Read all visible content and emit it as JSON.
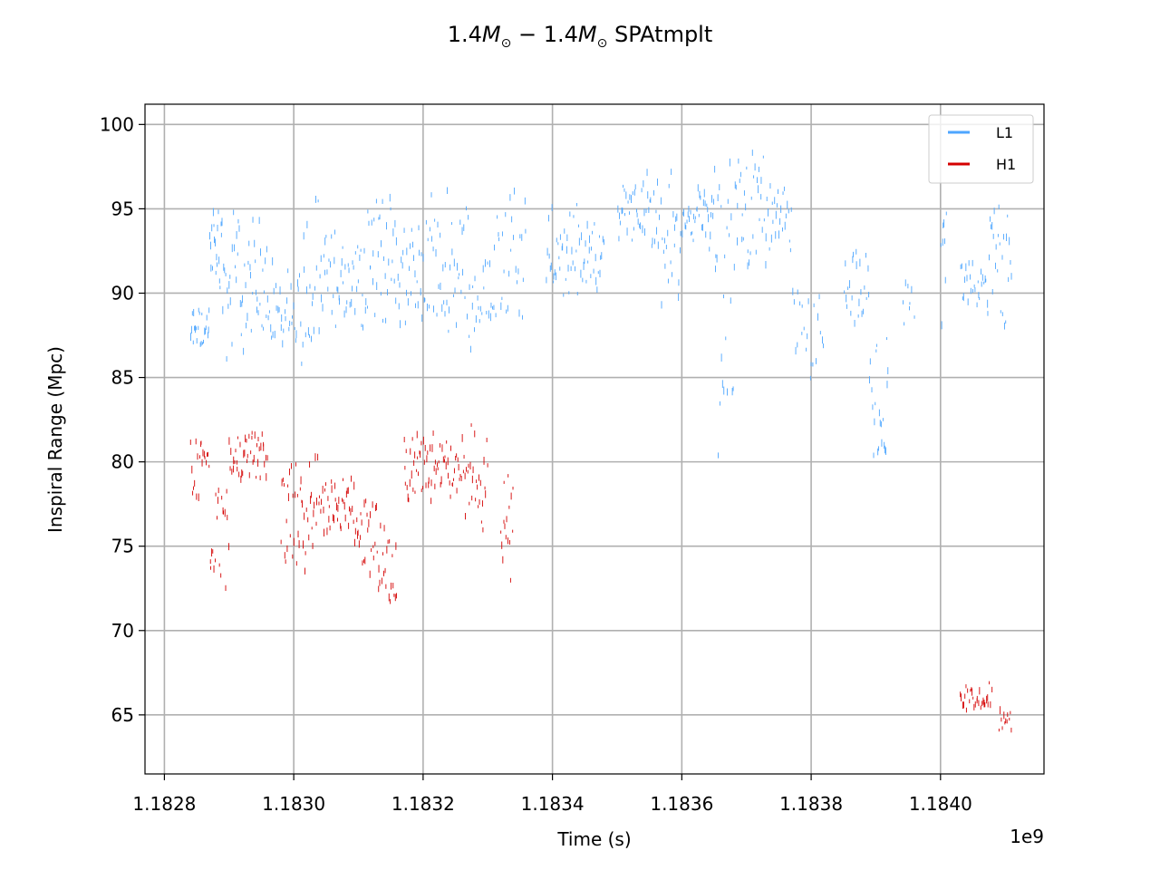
{
  "chart_data": {
    "type": "scatter",
    "title_parts": {
      "m1": "1.4",
      "m2": "1.4",
      "suffix": "SPAtmplt"
    },
    "xlabel": "Time (s)",
    "ylabel": "Inspiral Range (Mpc)",
    "x_offset_label": "1e9",
    "xlim": [
      1182770000.0,
      1184160000.0
    ],
    "ylim": [
      61.5,
      101.2
    ],
    "xticks": [
      1182800000.0,
      1183000000.0,
      1183200000.0,
      1183400000.0,
      1183600000.0,
      1183800000.0,
      1184000000.0
    ],
    "xtick_labels": [
      "1.1828",
      "1.1830",
      "1.1832",
      "1.1834",
      "1.1836",
      "1.1838",
      "1.1840"
    ],
    "yticks": [
      65,
      70,
      75,
      80,
      85,
      90,
      95,
      100
    ],
    "ytick_labels": [
      "65",
      "70",
      "75",
      "80",
      "85",
      "90",
      "95",
      "100"
    ],
    "grid": true,
    "legend_position": "top-right",
    "series": [
      {
        "name": "L1",
        "color": "#4da6ff",
        "segments": [
          {
            "x0": 1182840000.0,
            "x1": 1182870000.0,
            "y_lo": 86,
            "y_hi": 89.5,
            "n": 24
          },
          {
            "x0": 1182870000.0,
            "x1": 1182890000.0,
            "y_lo": 89.5,
            "y_hi": 96,
            "n": 20
          },
          {
            "x0": 1182890000.0,
            "x1": 1182930000.0,
            "y_lo": 85.5,
            "y_hi": 95.5,
            "n": 30
          },
          {
            "x0": 1182930000.0,
            "x1": 1182970000.0,
            "y_lo": 86,
            "y_hi": 95,
            "n": 30
          },
          {
            "x0": 1182970000.0,
            "x1": 1183010000.0,
            "y_lo": 86.5,
            "y_hi": 92,
            "n": 26
          },
          {
            "x0": 1183010000.0,
            "x1": 1183060000.0,
            "y_lo": 84.5,
            "y_hi": 96,
            "n": 34
          },
          {
            "x0": 1183060000.0,
            "x1": 1183110000.0,
            "y_lo": 87.5,
            "y_hi": 94,
            "n": 34
          },
          {
            "x0": 1183110000.0,
            "x1": 1183160000.0,
            "y_lo": 87,
            "y_hi": 97.2,
            "n": 36
          },
          {
            "x0": 1183160000.0,
            "x1": 1183210000.0,
            "y_lo": 87.5,
            "y_hi": 95,
            "n": 34
          },
          {
            "x0": 1183210000.0,
            "x1": 1183270000.0,
            "y_lo": 87,
            "y_hi": 96.5,
            "n": 40
          },
          {
            "x0": 1183270000.0,
            "x1": 1183310000.0,
            "y_lo": 86.5,
            "y_hi": 93,
            "n": 24
          },
          {
            "x0": 1183310000.0,
            "x1": 1183360000.0,
            "y_lo": 86.5,
            "y_hi": 97.5,
            "n": 28
          },
          {
            "x0": 1183390000.0,
            "x1": 1183440000.0,
            "y_lo": 89,
            "y_hi": 96,
            "n": 34
          },
          {
            "x0": 1183440000.0,
            "x1": 1183480000.0,
            "y_lo": 90,
            "y_hi": 94.5,
            "n": 28
          },
          {
            "x0": 1183500000.0,
            "x1": 1183550000.0,
            "y_lo": 92.5,
            "y_hi": 97.5,
            "n": 34
          },
          {
            "x0": 1183550000.0,
            "x1": 1183610000.0,
            "y_lo": 89,
            "y_hi": 97.5,
            "n": 40
          },
          {
            "x0": 1183610000.0,
            "x1": 1183650000.0,
            "y_lo": 92.5,
            "y_hi": 97,
            "n": 30
          },
          {
            "x0": 1183650000.0,
            "x1": 1183680000.0,
            "y_lo": 79,
            "y_hi": 99,
            "n": 24
          },
          {
            "x0": 1183680000.0,
            "x1": 1183730000.0,
            "y_lo": 90.5,
            "y_hi": 99.5,
            "n": 34
          },
          {
            "x0": 1183730000.0,
            "x1": 1183770000.0,
            "y_lo": 91,
            "y_hi": 97,
            "n": 26
          },
          {
            "x0": 1183770000.0,
            "x1": 1183820000.0,
            "y_lo": 84,
            "y_hi": 91,
            "n": 22
          },
          {
            "x0": 1183850000.0,
            "x1": 1183890000.0,
            "y_lo": 87,
            "y_hi": 93,
            "n": 24
          },
          {
            "x0": 1183890000.0,
            "x1": 1183920000.0,
            "y_lo": 78.5,
            "y_hi": 88,
            "n": 22
          },
          {
            "x0": 1183940000.0,
            "x1": 1183960000.0,
            "y_lo": 87,
            "y_hi": 91,
            "n": 8
          },
          {
            "x0": 1184000000.0,
            "x1": 1184010000.0,
            "y_lo": 86.5,
            "y_hi": 95.5,
            "n": 8
          },
          {
            "x0": 1184030000.0,
            "x1": 1184070000.0,
            "y_lo": 88.5,
            "y_hi": 93,
            "n": 24
          },
          {
            "x0": 1184070000.0,
            "x1": 1184110000.0,
            "y_lo": 85.5,
            "y_hi": 96.5,
            "n": 28
          }
        ]
      },
      {
        "name": "H1",
        "color": "#d40000",
        "segments": [
          {
            "x0": 1182840000.0,
            "x1": 1182870000.0,
            "y_lo": 77.5,
            "y_hi": 82,
            "n": 20
          },
          {
            "x0": 1182870000.0,
            "x1": 1182900000.0,
            "y_lo": 72,
            "y_hi": 79,
            "n": 20
          },
          {
            "x0": 1182900000.0,
            "x1": 1182960000.0,
            "y_lo": 78.5,
            "y_hi": 82,
            "n": 44
          },
          {
            "x0": 1182980000.0,
            "x1": 1183030000.0,
            "y_lo": 72.5,
            "y_hi": 81.5,
            "n": 38
          },
          {
            "x0": 1183030000.0,
            "x1": 1183090000.0,
            "y_lo": 75,
            "y_hi": 80.5,
            "n": 44
          },
          {
            "x0": 1183090000.0,
            "x1": 1183130000.0,
            "y_lo": 73,
            "y_hi": 79,
            "n": 30
          },
          {
            "x0": 1183130000.0,
            "x1": 1183160000.0,
            "y_lo": 70.5,
            "y_hi": 77.5,
            "n": 22
          },
          {
            "x0": 1183170000.0,
            "x1": 1183220000.0,
            "y_lo": 77.5,
            "y_hi": 82,
            "n": 40
          },
          {
            "x0": 1183220000.0,
            "x1": 1183260000.0,
            "y_lo": 77.5,
            "y_hi": 81.5,
            "n": 30
          },
          {
            "x0": 1183260000.0,
            "x1": 1183300000.0,
            "y_lo": 75,
            "y_hi": 83,
            "n": 30
          },
          {
            "x0": 1183320000.0,
            "x1": 1183340000.0,
            "y_lo": 72,
            "y_hi": 82,
            "n": 16
          },
          {
            "x0": 1184030000.0,
            "x1": 1184080000.0,
            "y_lo": 65,
            "y_hi": 67,
            "n": 30
          },
          {
            "x0": 1184090000.0,
            "x1": 1184110000.0,
            "y_lo": 63.5,
            "y_hi": 66,
            "n": 12
          }
        ]
      }
    ]
  }
}
